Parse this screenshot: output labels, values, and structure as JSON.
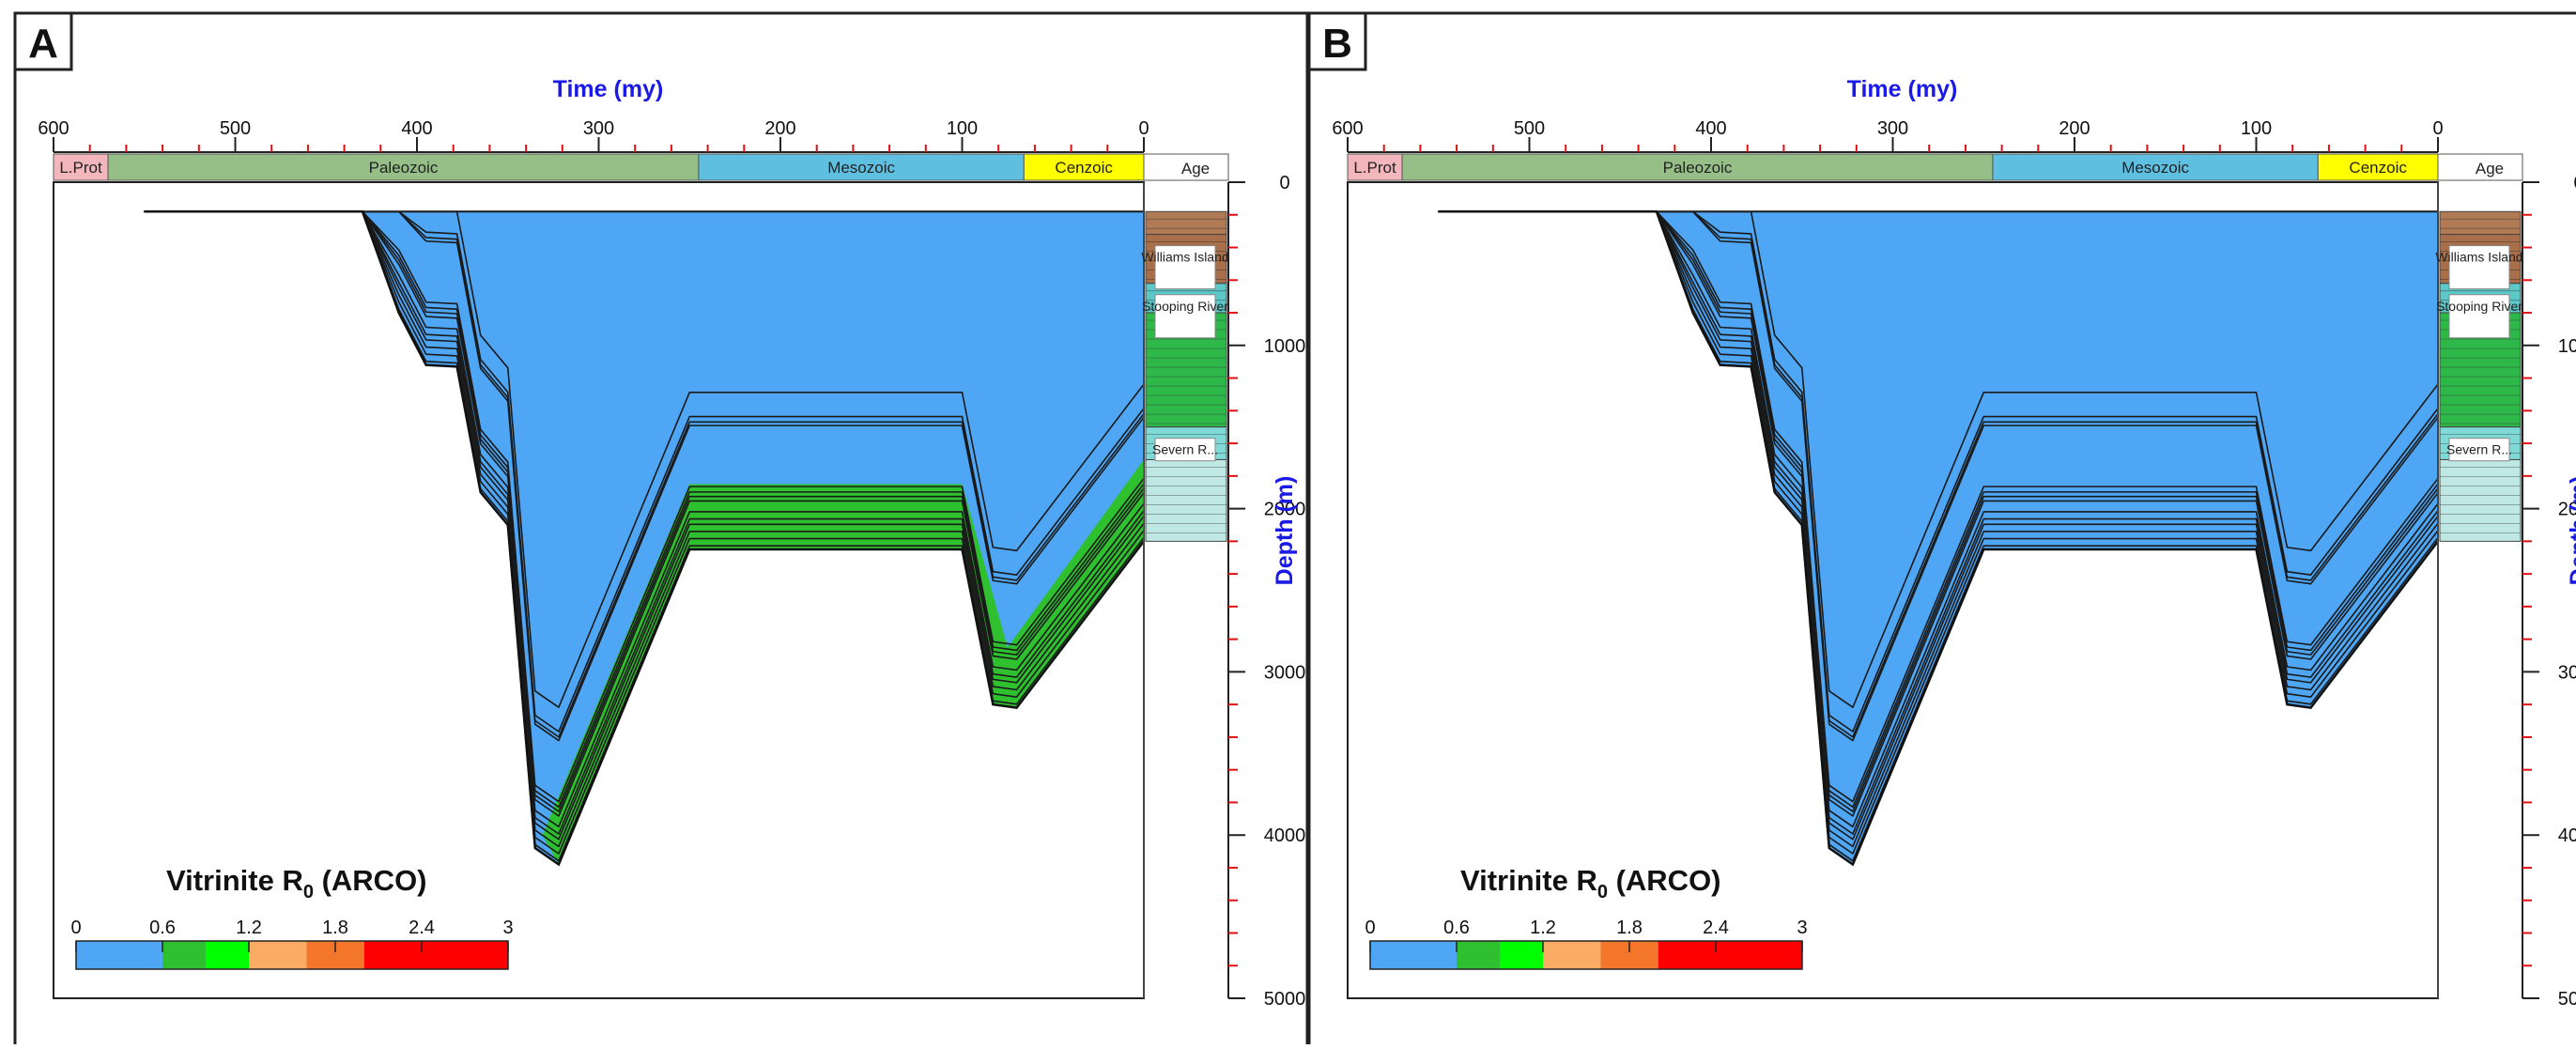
{
  "panels": [
    {
      "label": "A"
    },
    {
      "label": "B"
    }
  ],
  "chart_data": [
    {
      "type": "area",
      "panel": "A",
      "title": "",
      "xlabel": "Time (my)",
      "ylabel": "Depth (m)",
      "xlim": [
        600,
        0
      ],
      "ylim": [
        0,
        5000
      ],
      "x_ticks": [
        600,
        500,
        400,
        300,
        200,
        100,
        0
      ],
      "y_ticks": [
        0,
        1000,
        2000,
        3000,
        4000,
        5000
      ],
      "eras": [
        {
          "name": "L.Prot",
          "from": 600,
          "to": 570,
          "color": "#f4b6bd"
        },
        {
          "name": "Paleozoic",
          "from": 570,
          "to": 245,
          "color": "#96bf87"
        },
        {
          "name": "Mesozoic",
          "from": 245,
          "to": 66,
          "color": "#5fbfe0"
        },
        {
          "name": "Cenzoic",
          "from": 66,
          "to": 0,
          "color": "#ffff00"
        }
      ],
      "age_header": "Age",
      "formations": [
        {
          "name": "Williams Island",
          "top": 320,
          "base": 620
        },
        {
          "name": "Stooping River",
          "top": 620,
          "base": 1500
        },
        {
          "name": "Severn R...",
          "top": 1500,
          "base": 2200
        }
      ],
      "burial_series": [
        {
          "name": "",
          "points": [
            [
              550,
              180
            ],
            [
              430,
              180
            ],
            [
              410,
              800
            ],
            [
              395,
              1120
            ],
            [
              378,
              1130
            ],
            [
              365,
              1900
            ],
            [
              350,
              2100
            ],
            [
              335,
              4080
            ],
            [
              322,
              4180
            ],
            [
              250,
              2250
            ],
            [
              100,
              2250
            ],
            [
              83,
              3200
            ],
            [
              70,
              3220
            ],
            [
              0,
              2200
            ]
          ]
        }
      ],
      "maturity_zones": [
        {
          "range": "0-0.6",
          "color": "#4ea6f5",
          "time_span": [
            600,
            0
          ],
          "depth_from": 180
        },
        {
          "range": "0.6-0.9",
          "color": "#2fc02f",
          "polygon": [
            [
              331,
              4000
            ],
            [
              250,
              1850
            ],
            [
              100,
              1850
            ],
            [
              75,
              2850
            ],
            [
              0,
              1700
            ],
            [
              0,
              2200
            ],
            [
              70,
              3220
            ],
            [
              83,
              3200
            ],
            [
              100,
              2250
            ],
            [
              250,
              2250
            ],
            [
              322,
              4180
            ]
          ]
        }
      ],
      "legend": {
        "title": "Vitrinite R",
        "title_subscript": "0",
        "title_suffix": " (ARCO)",
        "ticks": [
          "0",
          "0.6",
          "1.2",
          "1.8",
          "2.4",
          "3"
        ],
        "scale": [
          {
            "from": 0,
            "to": 0.6,
            "color": "#4ea6f5"
          },
          {
            "from": 0.6,
            "to": 0.9,
            "color": "#2fc02f"
          },
          {
            "from": 0.9,
            "to": 1.2,
            "color": "#00ff00"
          },
          {
            "from": 1.2,
            "to": 1.6,
            "color": "#fbac64"
          },
          {
            "from": 1.6,
            "to": 2.0,
            "color": "#f4762b"
          },
          {
            "from": 2.0,
            "to": 3.0,
            "color": "#ff0000"
          }
        ]
      }
    },
    {
      "type": "area",
      "panel": "B",
      "title": "",
      "xlabel": "Time (my)",
      "ylabel": "Depth (m)",
      "xlim": [
        600,
        0
      ],
      "ylim": [
        0,
        5000
      ],
      "x_ticks": [
        600,
        500,
        400,
        300,
        200,
        100,
        0
      ],
      "y_ticks": [
        0,
        1000,
        2000,
        3000,
        4000,
        5000
      ],
      "eras": [
        {
          "name": "L.Prot",
          "from": 600,
          "to": 570,
          "color": "#f4b6bd"
        },
        {
          "name": "Paleozoic",
          "from": 570,
          "to": 245,
          "color": "#96bf87"
        },
        {
          "name": "Mesozoic",
          "from": 245,
          "to": 66,
          "color": "#5fbfe0"
        },
        {
          "name": "Cenzoic",
          "from": 66,
          "to": 0,
          "color": "#ffff00"
        }
      ],
      "age_header": "Age",
      "formations": [
        {
          "name": "Williams Island",
          "top": 320,
          "base": 620
        },
        {
          "name": "Stooping River",
          "top": 620,
          "base": 1500
        },
        {
          "name": "Severn R...",
          "top": 1500,
          "base": 2200
        }
      ],
      "burial_series": [
        {
          "name": "",
          "points": [
            [
              550,
              180
            ],
            [
              430,
              180
            ],
            [
              410,
              800
            ],
            [
              395,
              1120
            ],
            [
              378,
              1130
            ],
            [
              365,
              1900
            ],
            [
              350,
              2100
            ],
            [
              335,
              4080
            ],
            [
              322,
              4180
            ],
            [
              250,
              2250
            ],
            [
              100,
              2250
            ],
            [
              83,
              3200
            ],
            [
              70,
              3220
            ],
            [
              0,
              2200
            ]
          ]
        }
      ],
      "maturity_zones": [
        {
          "range": "0-0.6",
          "color": "#4ea6f5",
          "time_span": [
            600,
            0
          ],
          "depth_from": 180
        }
      ],
      "legend": {
        "title": "Vitrinite R",
        "title_subscript": "0",
        "title_suffix": " (ARCO)",
        "ticks": [
          "0",
          "0.6",
          "1.2",
          "1.8",
          "2.4",
          "3"
        ],
        "scale": [
          {
            "from": 0,
            "to": 0.6,
            "color": "#4ea6f5"
          },
          {
            "from": 0.6,
            "to": 0.9,
            "color": "#2fc02f"
          },
          {
            "from": 0.9,
            "to": 1.2,
            "color": "#00ff00"
          },
          {
            "from": 1.2,
            "to": 1.6,
            "color": "#fbac64"
          },
          {
            "from": 1.6,
            "to": 2.0,
            "color": "#f4762b"
          },
          {
            "from": 2.0,
            "to": 3.0,
            "color": "#ff0000"
          }
        ]
      }
    }
  ]
}
